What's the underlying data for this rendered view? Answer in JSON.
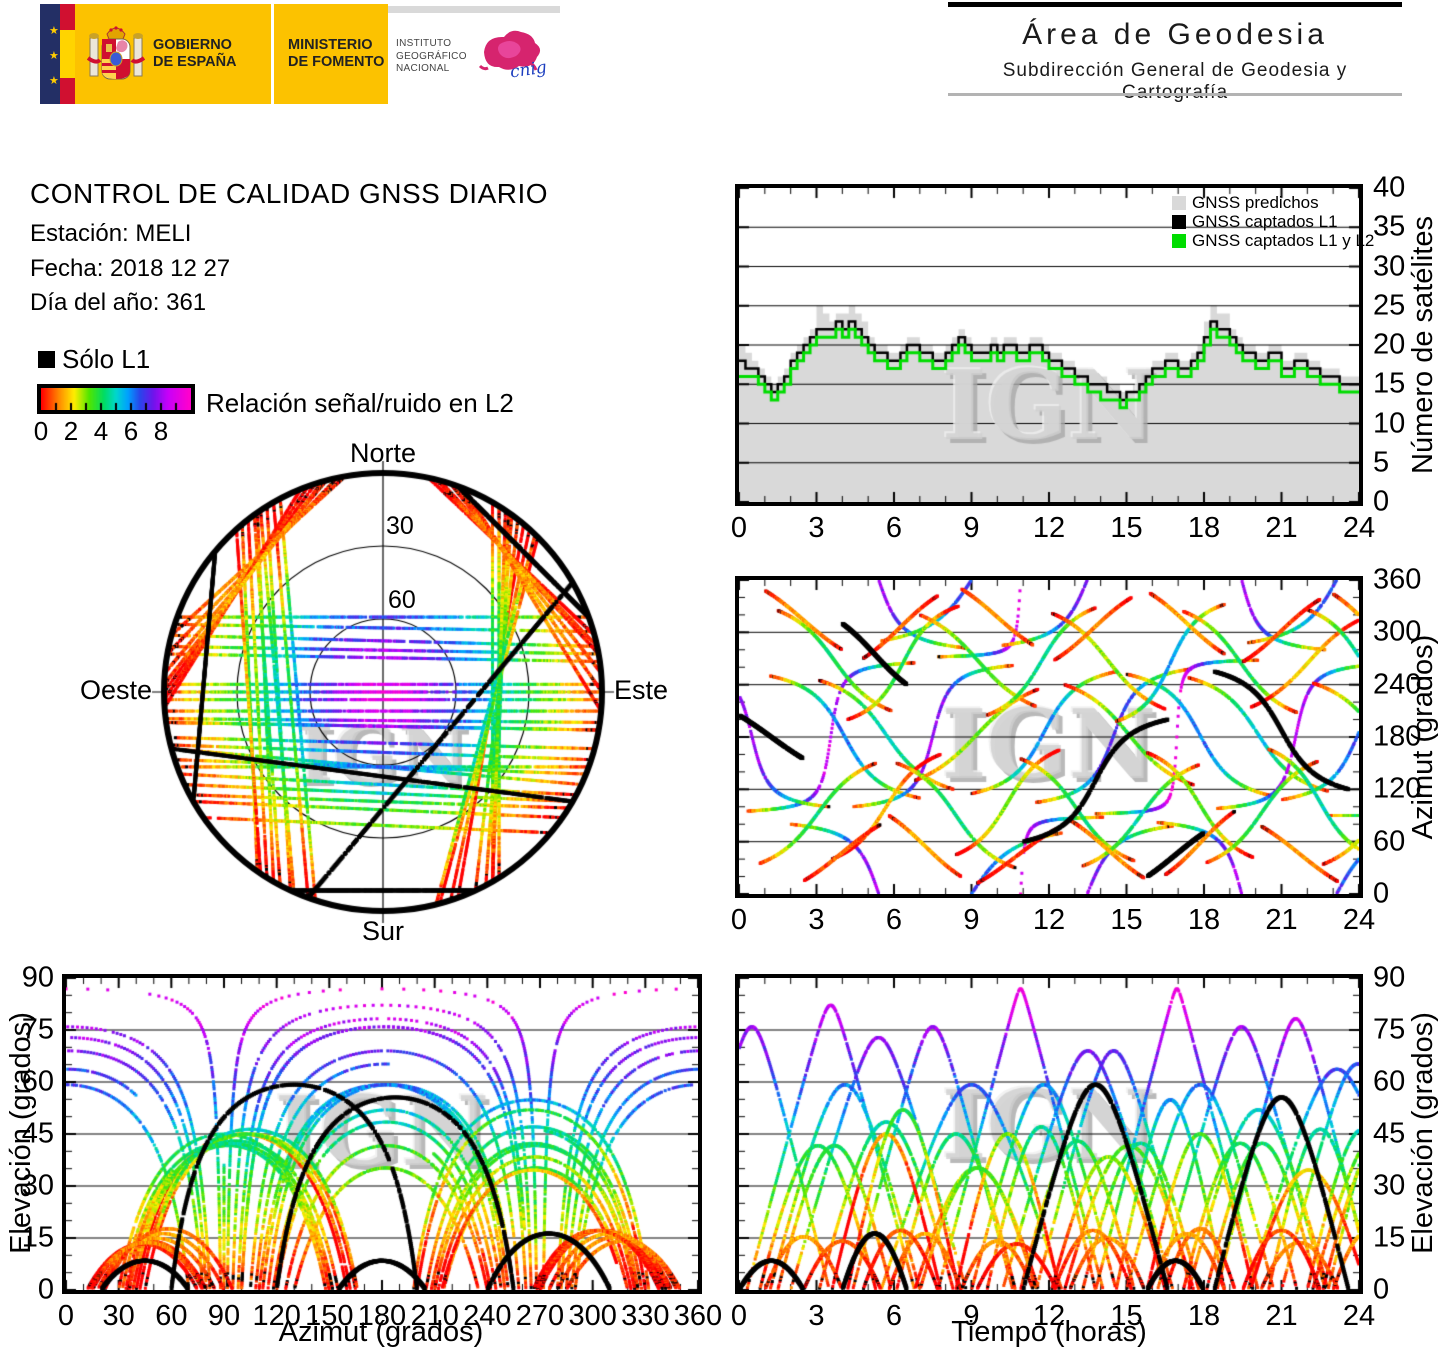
{
  "header": {
    "logo": {
      "gobierno_line1": "GOBIERNO",
      "gobierno_line2": "DE ESPAÑA",
      "ministerio_line1": "MINISTERIO",
      "ministerio_line2": "DE FOMENTO",
      "ign_line1": "INSTITUTO",
      "ign_line2": "GEOGRÁFICO",
      "ign_line3": "NACIONAL",
      "cnig": "cnig"
    },
    "area": {
      "title": "Área de Geodesia",
      "subtitle": "Subdirección General de Geodesia y Cartografía"
    }
  },
  "info": {
    "title": "CONTROL DE CALIDAD GNSS DIARIO",
    "station": "Estación: MELI",
    "date": "Fecha: 2018 12 27",
    "doy": "Día del año: 361"
  },
  "legend": {
    "solo_l1": "Sólo L1"
  },
  "watermark": "IGN",
  "chart_data": {
    "snr_colorbar": {
      "label": "Relación señal/ruido en L2",
      "ticks": [
        0,
        2,
        4,
        6,
        8
      ],
      "range": [
        0,
        10
      ]
    },
    "snr_colormap": {
      "stops": [
        [
          0,
          255,
          0,
          0
        ],
        [
          1.2,
          255,
          140,
          0
        ],
        [
          2.2,
          255,
          238,
          0
        ],
        [
          3.2,
          80,
          230,
          0
        ],
        [
          4.2,
          0,
          220,
          100
        ],
        [
          5.0,
          0,
          215,
          205
        ],
        [
          5.8,
          0,
          160,
          255
        ],
        [
          6.6,
          40,
          70,
          235
        ],
        [
          7.5,
          110,
          20,
          235
        ],
        [
          8.5,
          200,
          0,
          250
        ],
        [
          9.9,
          255,
          0,
          205
        ]
      ]
    },
    "satellite_count": {
      "type": "bar",
      "title": "",
      "ylabel": "Número de satélites",
      "x_range": [
        0,
        24
      ],
      "y_range": [
        0,
        40
      ],
      "x_ticks": [
        0,
        3,
        6,
        9,
        12,
        15,
        18,
        21,
        24
      ],
      "y_ticks": [
        0,
        5,
        10,
        15,
        20,
        25,
        30,
        35,
        40
      ],
      "gridlines_y": [
        5,
        10,
        15,
        20,
        25,
        30,
        35
      ],
      "step_hours": 0.25,
      "series": [
        {
          "name": "GNSS predichos",
          "color": "#d9d9d9",
          "style": "area",
          "values": [
            20,
            19,
            18,
            17,
            16,
            15,
            16,
            17,
            19,
            20,
            21,
            22,
            25,
            24,
            23,
            24,
            24,
            25,
            24,
            23,
            21,
            20,
            20,
            19,
            19,
            20,
            21,
            21,
            20,
            20,
            19,
            19,
            20,
            21,
            22,
            21,
            20,
            20,
            20,
            21,
            20,
            21,
            21,
            20,
            20,
            21,
            21,
            20,
            19,
            19,
            18,
            18,
            17,
            17,
            16,
            16,
            16,
            15,
            15,
            14,
            14,
            15,
            16,
            17,
            18,
            18,
            19,
            19,
            18,
            18,
            19,
            20,
            23,
            25,
            24,
            24,
            22,
            21,
            20,
            20,
            19,
            19,
            20,
            20,
            18,
            18,
            19,
            19,
            18,
            18,
            17,
            17,
            17,
            16,
            16,
            16,
            16
          ]
        },
        {
          "name": "GNSS captados L1",
          "color": "#000000",
          "style": "step",
          "values": [
            18,
            17,
            17,
            16,
            15,
            14,
            15,
            16,
            18,
            19,
            20,
            21,
            22,
            22,
            22,
            23,
            22,
            23,
            22,
            21,
            20,
            19,
            19,
            18,
            18,
            19,
            20,
            20,
            19,
            19,
            18,
            18,
            19,
            20,
            21,
            20,
            19,
            19,
            19,
            20,
            19,
            20,
            20,
            19,
            19,
            20,
            20,
            19,
            18,
            18,
            17,
            17,
            16,
            16,
            15,
            15,
            15,
            14,
            14,
            13,
            14,
            14,
            15,
            16,
            17,
            17,
            18,
            18,
            17,
            17,
            18,
            19,
            21,
            23,
            22,
            22,
            21,
            20,
            19,
            19,
            18,
            18,
            19,
            19,
            17,
            17,
            18,
            18,
            17,
            17,
            16,
            16,
            16,
            15,
            15,
            15,
            15
          ]
        },
        {
          "name": "GNSS captados L1 y L2",
          "color": "#00dd00",
          "style": "step",
          "values": [
            16,
            16,
            16,
            15,
            14,
            13,
            14,
            15,
            17,
            18,
            19,
            20,
            21,
            21,
            21,
            22,
            21,
            22,
            21,
            20,
            19,
            18,
            18,
            17,
            17,
            18,
            19,
            19,
            18,
            18,
            17,
            17,
            18,
            19,
            20,
            19,
            18,
            18,
            18,
            19,
            18,
            19,
            19,
            18,
            18,
            19,
            19,
            18,
            17,
            17,
            16,
            16,
            15,
            15,
            14,
            14,
            13,
            13,
            13,
            12,
            13,
            13,
            14,
            15,
            16,
            16,
            17,
            17,
            16,
            16,
            17,
            18,
            20,
            22,
            21,
            21,
            20,
            19,
            18,
            18,
            17,
            17,
            18,
            18,
            16,
            16,
            17,
            17,
            16,
            16,
            15,
            15,
            15,
            14,
            14,
            14,
            14
          ]
        }
      ]
    },
    "sky_plot": {
      "type": "scatter",
      "rings": [
        {
          "el": 30,
          "label": "30"
        },
        {
          "el": 60,
          "label": "60"
        }
      ],
      "compass": {
        "north": "Norte",
        "south": "Sur",
        "east": "Este",
        "west": "Oeste"
      }
    },
    "azimuth_vs_time": {
      "type": "scatter",
      "ylabel": "Azimut (grados)",
      "x_range": [
        0,
        24
      ],
      "y_range": [
        0,
        360
      ],
      "x_ticks": [
        0,
        3,
        6,
        9,
        12,
        15,
        18,
        21,
        24
      ],
      "y_ticks": [
        0,
        60,
        120,
        180,
        240,
        300,
        360
      ],
      "gridlines_y": [
        60,
        120,
        180,
        240,
        300
      ]
    },
    "elevation_vs_azimuth": {
      "type": "scatter",
      "xlabel": "Azimut (grados)",
      "ylabel": "Elevación (grados)",
      "x_range": [
        0,
        360
      ],
      "y_range": [
        0,
        90
      ],
      "x_ticks": [
        0,
        30,
        60,
        90,
        120,
        150,
        180,
        210,
        240,
        270,
        300,
        330,
        360
      ],
      "y_ticks": [
        0,
        15,
        30,
        45,
        60,
        75,
        90
      ],
      "gridlines_y": [
        15,
        30,
        45,
        60,
        75
      ]
    },
    "elevation_vs_time": {
      "type": "scatter",
      "xlabel": "Tiempo (horas)",
      "ylabel": "Elevación (grados)",
      "x_range": [
        0,
        24
      ],
      "y_range": [
        0,
        90
      ],
      "x_ticks": [
        0,
        3,
        6,
        9,
        12,
        15,
        18,
        21,
        24
      ],
      "y_ticks": [
        0,
        15,
        30,
        45,
        60,
        75,
        90
      ],
      "gridlines_y": [
        15,
        30,
        45,
        60,
        75
      ]
    },
    "passes": {
      "format": [
        "az_rise_deg",
        "az_set_deg",
        "start_hour",
        "duration_hours",
        "l1_only",
        "snr_offset"
      ],
      "tracks": [
        [
          95,
          265,
          0.3,
          6.5,
          0,
          0.6
        ],
        [
          250,
          110,
          1.2,
          5.8,
          0,
          0.2
        ],
        [
          80,
          282,
          2.0,
          6.8,
          0,
          0.8
        ],
        [
          245,
          120,
          3.1,
          5.2,
          0,
          0
        ],
        [
          100,
          262,
          4.4,
          6.2,
          0,
          0.5
        ],
        [
          290,
          70,
          5.5,
          7.0,
          0,
          0.9
        ],
        [
          130,
          235,
          6.8,
          4.8,
          0,
          -0.3
        ],
        [
          272,
          88,
          7.7,
          6.4,
          0,
          0.7
        ],
        [
          115,
          255,
          9.0,
          5.6,
          0,
          0.1
        ],
        [
          285,
          78,
          10.2,
          6.6,
          0,
          0.8
        ],
        [
          105,
          258,
          11.5,
          6.0,
          0,
          0.4
        ],
        [
          240,
          125,
          12.6,
          5.0,
          0,
          -0.5
        ],
        [
          92,
          268,
          13.8,
          6.3,
          0,
          0.9
        ],
        [
          252,
          112,
          15.0,
          5.7,
          0,
          0.3
        ],
        [
          82,
          280,
          16.2,
          6.5,
          0,
          0.6
        ],
        [
          248,
          118,
          17.4,
          5.4,
          0,
          0
        ],
        [
          98,
          263,
          18.5,
          6.1,
          0,
          0.8
        ],
        [
          288,
          74,
          19.7,
          6.9,
          0,
          0.5
        ],
        [
          108,
          256,
          21.0,
          5.9,
          0,
          0.2
        ],
        [
          242,
          122,
          22.2,
          5.1,
          0,
          -0.4
        ],
        [
          90,
          270,
          22.8,
          6.0,
          0,
          0.7
        ],
        [
          262,
          100,
          -2.5,
          6.0,
          0,
          0.5
        ],
        [
          35,
          150,
          0.8,
          4.5,
          0,
          0
        ],
        [
          40,
          160,
          3.6,
          4.2,
          0,
          -2.8
        ],
        [
          150,
          30,
          6.1,
          4.6,
          0,
          0
        ],
        [
          45,
          165,
          8.4,
          4.0,
          0,
          -1.5
        ],
        [
          155,
          38,
          10.9,
          4.4,
          0,
          0
        ],
        [
          32,
          148,
          13.3,
          4.5,
          0,
          0.3
        ],
        [
          162,
          42,
          15.8,
          4.1,
          0,
          -1.0
        ],
        [
          36,
          152,
          18.1,
          4.3,
          0,
          0
        ],
        [
          166,
          44,
          20.5,
          4.0,
          0,
          0.2
        ],
        [
          34,
          150,
          22.6,
          4.4,
          0,
          -0.6
        ],
        [
          325,
          210,
          1.5,
          4.4,
          0,
          0
        ],
        [
          200,
          330,
          4.2,
          4.3,
          0,
          -1.2
        ],
        [
          320,
          215,
          7.0,
          4.5,
          0,
          0.2
        ],
        [
          205,
          328,
          9.6,
          4.2,
          0,
          0
        ],
        [
          322,
          212,
          12.1,
          4.4,
          0,
          -0.8
        ],
        [
          198,
          332,
          14.6,
          4.2,
          0,
          0.3
        ],
        [
          324,
          208,
          17.2,
          4.4,
          0,
          0
        ],
        [
          214,
          318,
          19.8,
          4.5,
          0,
          -1.5
        ],
        [
          326,
          204,
          22.0,
          4.3,
          0,
          0.1
        ],
        [
          15,
          80,
          2.5,
          3.0,
          0,
          -0.5
        ],
        [
          90,
          20,
          5.8,
          2.8,
          0,
          0
        ],
        [
          12,
          75,
          9.2,
          3.1,
          0,
          -1.0
        ],
        [
          85,
          18,
          12.8,
          2.9,
          0,
          0
        ],
        [
          22,
          95,
          16.5,
          2.7,
          0,
          -0.5
        ],
        [
          78,
          14,
          20.2,
          3.0,
          0,
          0
        ],
        [
          348,
          280,
          1.0,
          3.0,
          0,
          0
        ],
        [
          270,
          342,
          4.8,
          2.9,
          0,
          -0.8
        ],
        [
          350,
          285,
          8.6,
          2.8,
          0,
          0
        ],
        [
          268,
          340,
          12.2,
          3.0,
          0,
          -0.5
        ],
        [
          345,
          275,
          15.9,
          2.9,
          0,
          0
        ],
        [
          266,
          338,
          19.5,
          3.0,
          0,
          -1.0
        ],
        [
          344,
          272,
          23.0,
          2.8,
          0,
          0
        ],
        [
          205,
          155,
          0.0,
          2.5,
          1,
          0
        ],
        [
          310,
          240,
          4.0,
          2.5,
          1,
          0
        ],
        [
          60,
          200,
          11.0,
          5.6,
          1,
          0
        ],
        [
          20,
          70,
          15.8,
          2.2,
          1,
          0
        ],
        [
          255,
          120,
          18.4,
          5.2,
          1,
          0
        ]
      ]
    }
  }
}
